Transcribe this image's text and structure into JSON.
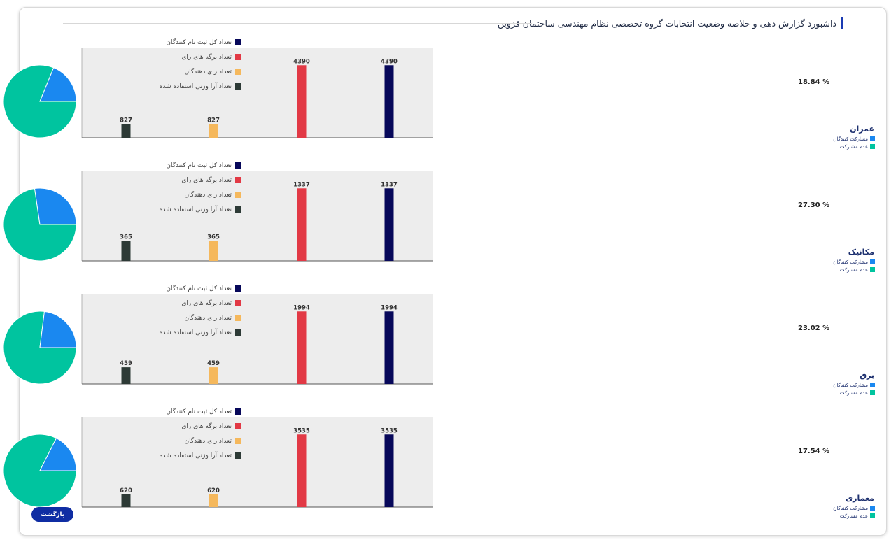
{
  "page": {
    "title": "داشبورد گزارش دهی و خلاصه وضعیت انتخابات گروه تخصصی نظام مهندسی ساختمان قزوین",
    "back_label": "بازگشت"
  },
  "colors": {
    "participants": "#1a88f0",
    "non_participants": "#00c49f",
    "registered": "#07085a",
    "ballots": "#e23945",
    "voters": "#f5b85c",
    "weighted_votes": "#2d3a36",
    "plot_bg": "#ededed",
    "title_accent": "#1a3bb3"
  },
  "pie_legend": [
    "مشارکت کنندگان",
    "عدم مشارکت"
  ],
  "bar_legend": [
    "تعداد کل ثبت نام کنندگان",
    "تعداد برگه های رای",
    "تعداد رای دهندگان",
    "تعداد آرا وزنی استفاده شده"
  ],
  "chart_data": [
    {
      "name": "عمران",
      "pie": {
        "type": "pie",
        "labels": [
          "مشارکت کنندگان",
          "عدم مشارکت"
        ],
        "values": [
          18.84,
          81.16
        ],
        "label_text": "18.84 %"
      },
      "bar": {
        "type": "bar",
        "series": [
          {
            "name": "تعداد آرا وزنی استفاده شده",
            "value": 827
          },
          {
            "name": "تعداد رای دهندگان",
            "value": 827
          },
          {
            "name": "تعداد برگه های رای",
            "value": 4390
          },
          {
            "name": "تعداد کل ثبت نام کنندگان",
            "value": 4390
          }
        ],
        "ylim": [
          0,
          5460
        ]
      }
    },
    {
      "name": "مکانیک",
      "pie": {
        "type": "pie",
        "labels": [
          "مشارکت کنندگان",
          "عدم مشارکت"
        ],
        "values": [
          27.3,
          72.7
        ],
        "label_text": "27.30 %"
      },
      "bar": {
        "type": "bar",
        "series": [
          {
            "name": "تعداد آرا وزنی استفاده شده",
            "value": 365
          },
          {
            "name": "تعداد رای دهندگان",
            "value": 365
          },
          {
            "name": "تعداد برگه های رای",
            "value": 1337
          },
          {
            "name": "تعداد کل ثبت نام کنندگان",
            "value": 1337
          }
        ],
        "ylim": [
          0,
          1663
        ]
      }
    },
    {
      "name": "برق",
      "pie": {
        "type": "pie",
        "labels": [
          "مشارکت کنندگان",
          "عدم مشارکت"
        ],
        "values": [
          23.02,
          76.98
        ],
        "label_text": "23.02 %"
      },
      "bar": {
        "type": "bar",
        "series": [
          {
            "name": "تعداد آرا وزنی استفاده شده",
            "value": 459
          },
          {
            "name": "تعداد رای دهندگان",
            "value": 459
          },
          {
            "name": "تعداد برگه های رای",
            "value": 1994
          },
          {
            "name": "تعداد کل ثبت نام کنندگان",
            "value": 1994
          }
        ],
        "ylim": [
          0,
          2480
        ]
      }
    },
    {
      "name": "معماری",
      "pie": {
        "type": "pie",
        "labels": [
          "مشارکت کنندگان",
          "عدم مشارکت"
        ],
        "values": [
          17.54,
          82.46
        ],
        "label_text": "17.54 %"
      },
      "bar": {
        "type": "bar",
        "series": [
          {
            "name": "تعداد آرا وزنی استفاده شده",
            "value": 620
          },
          {
            "name": "تعداد رای دهندگان",
            "value": 620
          },
          {
            "name": "تعداد برگه های رای",
            "value": 3535
          },
          {
            "name": "تعداد کل ثبت نام کنندگان",
            "value": 3535
          }
        ],
        "ylim": [
          0,
          4396
        ]
      }
    }
  ]
}
